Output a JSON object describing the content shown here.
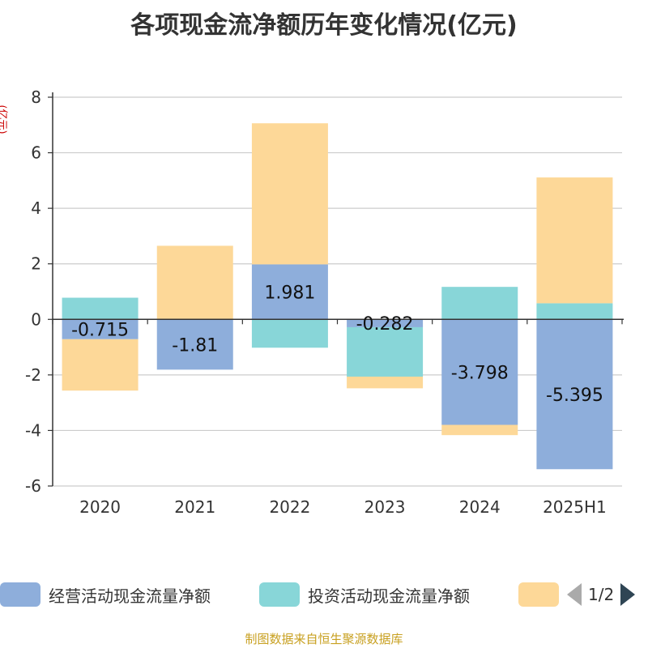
{
  "chart_data": {
    "type": "bar",
    "stacked": true,
    "title": "各项现金流净额历年变化情况(亿元)",
    "ylabel": "(亿元)",
    "categories": [
      "2020",
      "2021",
      "2022",
      "2023",
      "2024",
      "2025H1"
    ],
    "ylim": [
      -6,
      8
    ],
    "yticks": [
      8,
      6,
      4,
      2,
      0,
      -2,
      -4,
      -6
    ],
    "grid": true,
    "series": [
      {
        "name": "经营活动现金流量净额",
        "color": "#8eaedb",
        "values": [
          -0.715,
          -1.81,
          1.981,
          -0.282,
          -3.798,
          -5.395
        ],
        "labels": [
          "-0.715",
          "-1.81",
          "1.981",
          "-0.282",
          "-3.798",
          "-5.395"
        ]
      },
      {
        "name": "投资活动现金流量净额",
        "color": "#88d6d8",
        "values": [
          0.78,
          0,
          -1.02,
          -1.78,
          1.17,
          0.58
        ]
      },
      {
        "name": "",
        "color": "#fdd898",
        "values": [
          -1.85,
          2.65,
          5.08,
          -0.42,
          -0.37,
          4.53
        ]
      }
    ]
  },
  "legend": {
    "items": [
      "经营活动现金流量净额",
      "投资活动现金流量净额",
      ""
    ],
    "page": "1/2"
  },
  "source": "制图数据来自恒生聚源数据库"
}
